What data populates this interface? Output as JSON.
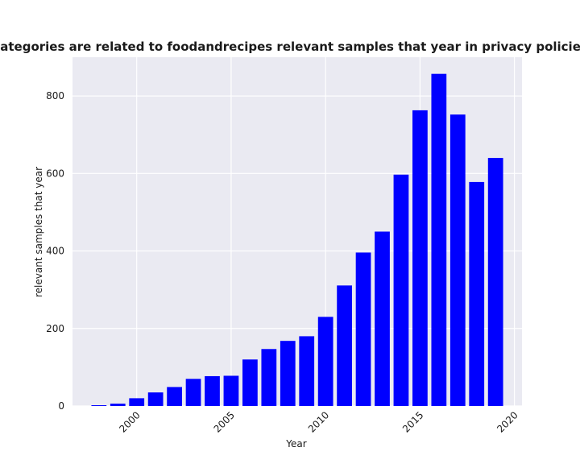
{
  "chart_data": {
    "type": "bar",
    "title": "When categories are related to foodandrecipes relevant samples that year in privacy policies by Year",
    "xlabel": "Year",
    "ylabel": "relevant samples that year",
    "x": [
      1998,
      1999,
      2000,
      2001,
      2002,
      2003,
      2004,
      2005,
      2006,
      2007,
      2008,
      2009,
      2010,
      2011,
      2012,
      2013,
      2014,
      2015,
      2016,
      2017,
      2018,
      2019
    ],
    "values": [
      2,
      6,
      20,
      35,
      49,
      70,
      77,
      78,
      120,
      147,
      168,
      180,
      230,
      311,
      396,
      450,
      597,
      763,
      857,
      752,
      578,
      640
    ],
    "xlim": [
      1996.6,
      2020.4
    ],
    "ylim": [
      0,
      900
    ],
    "xticks": [
      "2000",
      "2005",
      "2010",
      "2015",
      "2020"
    ],
    "yticks": [
      "0",
      "200",
      "400",
      "600",
      "800"
    ],
    "bar_color": "#0000ff",
    "background_color": "#eaeaf2",
    "grid": true
  }
}
